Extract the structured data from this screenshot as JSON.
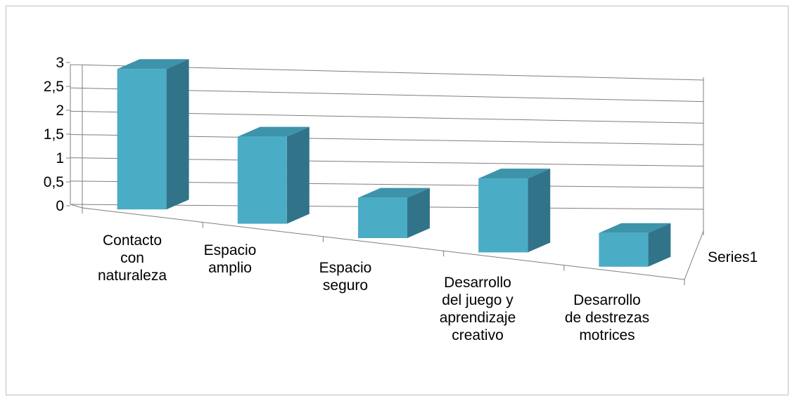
{
  "chart_data": {
    "type": "bar",
    "style": "3d-column",
    "categories": [
      [
        "Contacto",
        "con",
        "naturaleza"
      ],
      [
        "Espacio",
        "amplio"
      ],
      [
        "Espacio",
        "seguro"
      ],
      [
        "Desarrollo",
        "del juego y",
        "aprendizaje",
        "creativo"
      ],
      [
        "Desarrollo",
        "de destrezas",
        "motrices"
      ]
    ],
    "series": [
      {
        "name": "Series1",
        "values": [
          3,
          2,
          1,
          2,
          1
        ]
      }
    ],
    "yticks": [
      "0",
      "0,5",
      "1",
      "1,5",
      "2",
      "2,5",
      "3"
    ],
    "ylim": [
      0,
      3
    ],
    "grid": true,
    "colors": {
      "front": "#4bacc6",
      "side": "#31748a",
      "top": "#3d93aa",
      "grid": "#7f7f7f"
    },
    "title": "",
    "xlabel": "",
    "ylabel": ""
  }
}
